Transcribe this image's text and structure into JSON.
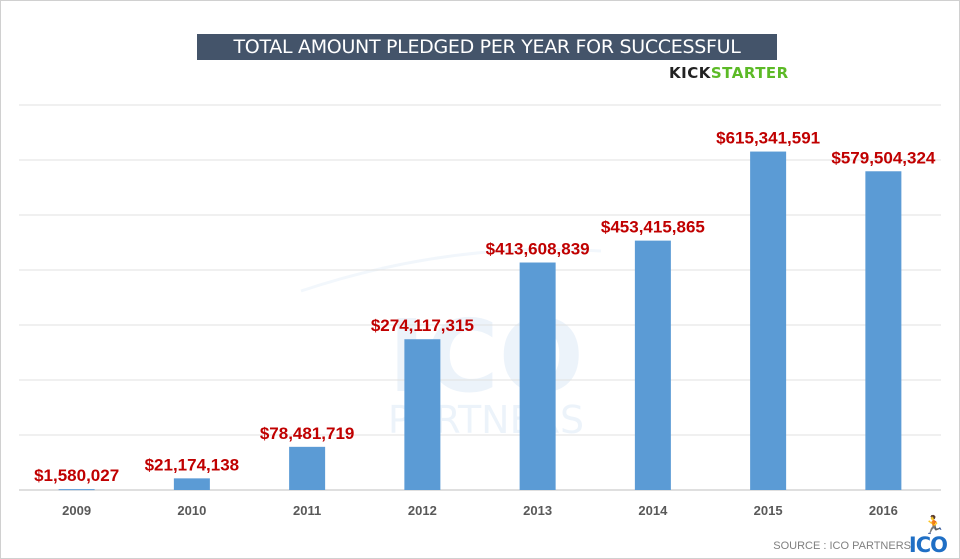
{
  "chart_data": {
    "type": "bar",
    "title": "TOTAL AMOUNT PLEDGED PER YEAR FOR SUCCESSFUL PROJECTS",
    "categories": [
      "2009",
      "2010",
      "2011",
      "2012",
      "2013",
      "2014",
      "2015",
      "2016"
    ],
    "values": [
      1580027,
      21174138,
      78481719,
      274117315,
      413608839,
      453415865,
      615341591,
      579504324
    ],
    "data_labels": [
      "$1,580,027",
      "$21,174,138",
      "$78,481,719",
      "$274,117,315",
      "$413,608,839",
      "$453,415,865",
      "$615,341,591",
      "$579,504,324"
    ],
    "xlabel": "",
    "ylabel": "",
    "ylim": [
      0,
      700000000
    ],
    "grid": true,
    "bar_color": "#5b9bd5",
    "label_color": "#c00000"
  },
  "branding": {
    "kick": "KICK",
    "starter": "STARTER",
    "source": "SOURCE : ICO PARTNERS",
    "ico_logo": "ICO",
    "watermark_main": "ICO",
    "watermark_sub": "PARTNERS"
  }
}
